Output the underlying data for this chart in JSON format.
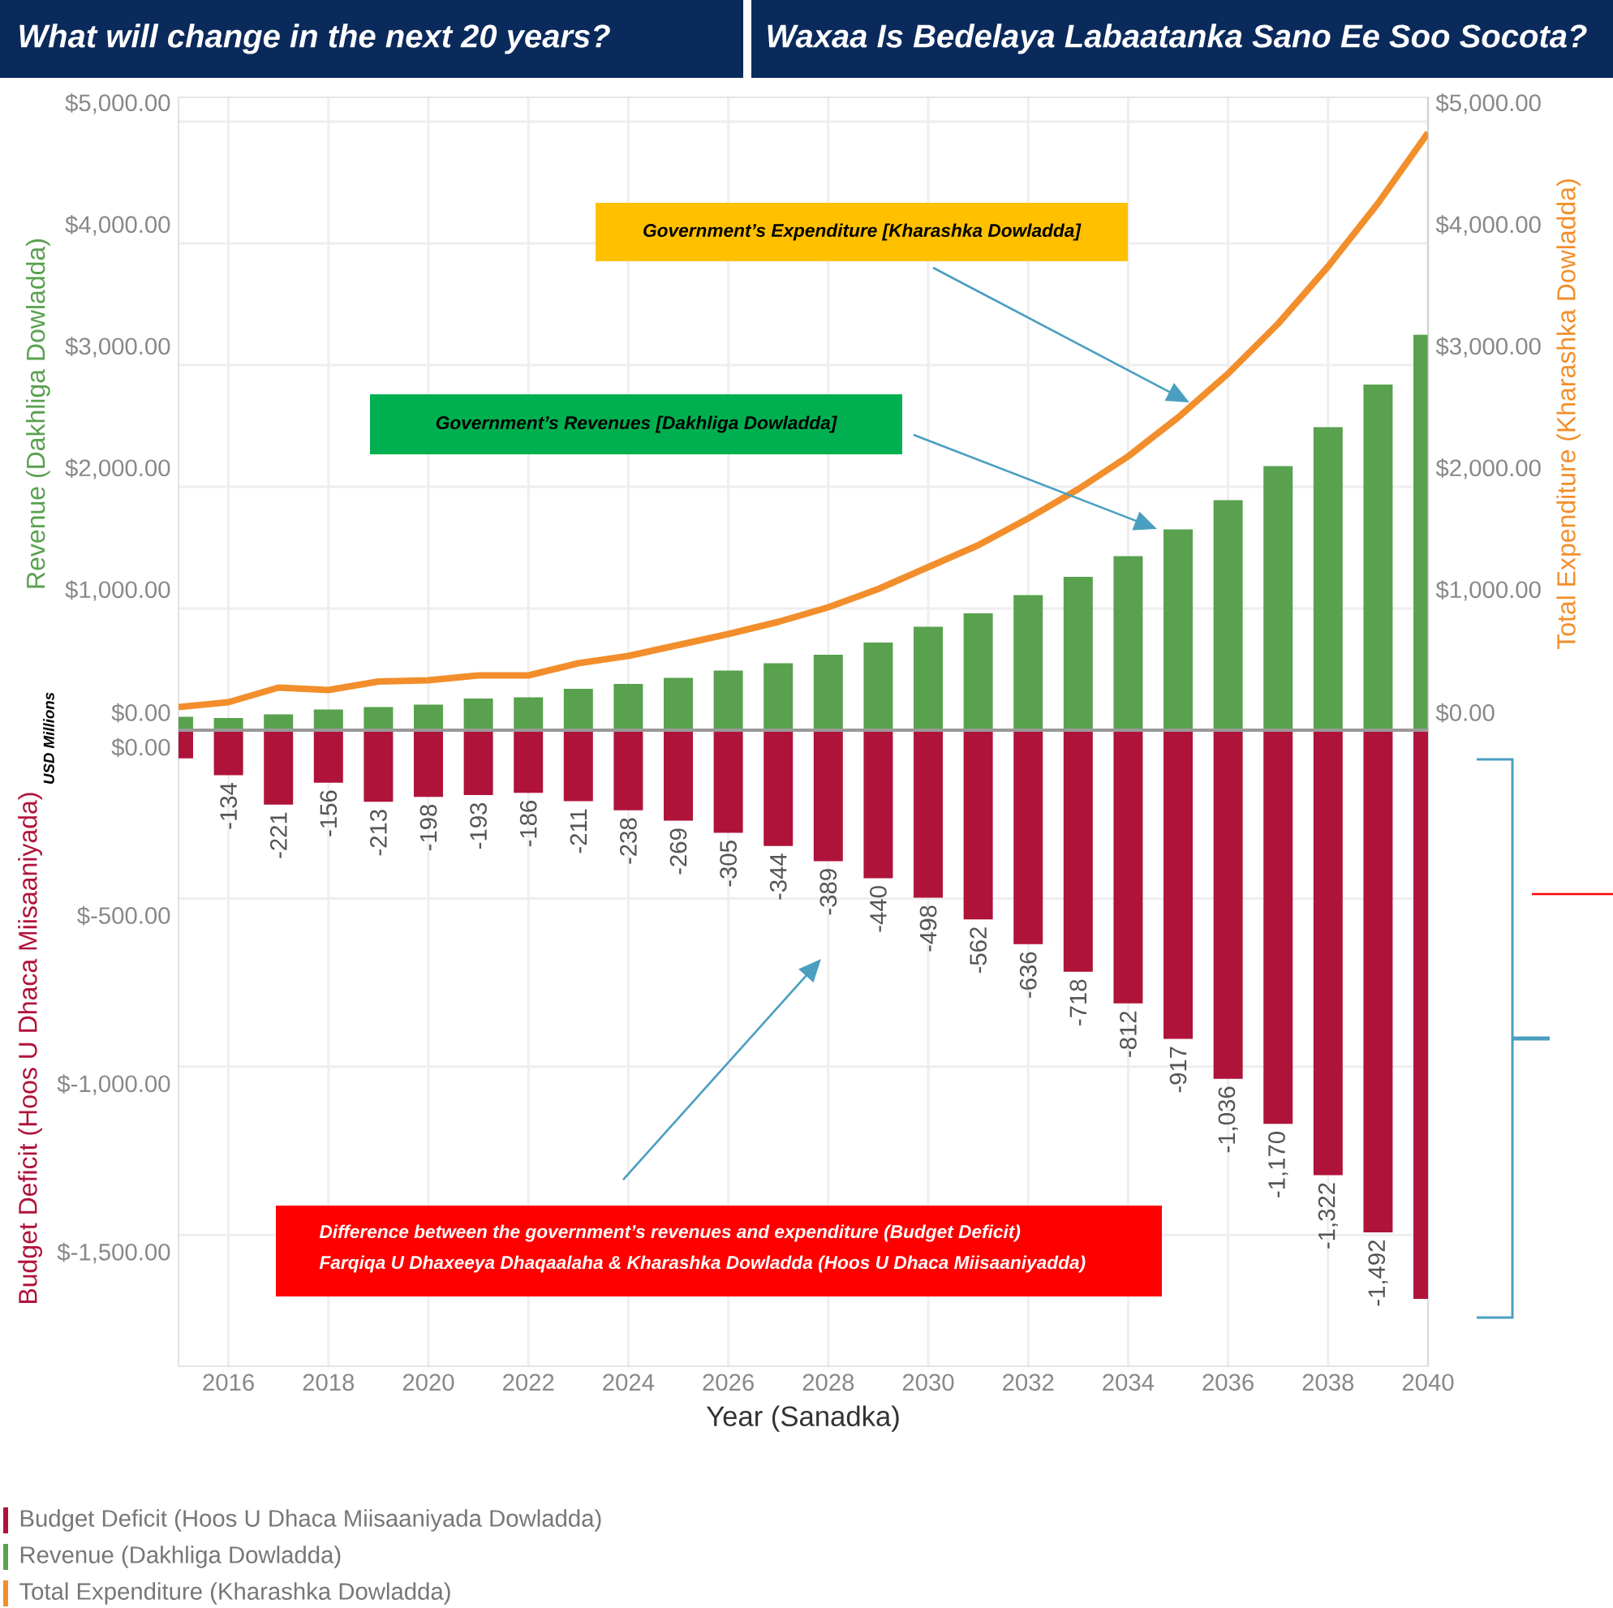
{
  "chart_data": [
    {
      "type": "bar",
      "title": "What will change in the next 20 years?",
      "subtitle": "Waxaa Is Bedelaya Labaatanka Sano Ee Soo Socota?",
      "ylabel": "Revenue (Dakhliga Dowladda)",
      "y2label": "Total Expenditure (Kharashka Dowladda)",
      "annotations": [
        "Government’s Expenditure [Kharashka Dowladda]",
        "Government’s Revenues [Dakhliga Dowladda]",
        "USD Millions"
      ],
      "x": [
        2015,
        2016,
        2017,
        2018,
        2019,
        2020,
        2021,
        2022,
        2023,
        2024,
        2025,
        2026,
        2027,
        2028,
        2029,
        2030,
        2031,
        2032,
        2033,
        2034,
        2035,
        2036,
        2037,
        2038,
        2039,
        2040
      ],
      "series": [
        {
          "name": "Revenue (Dakhliga Dowladda)",
          "type": "bar",
          "color": "#59a14f",
          "values": [
            110,
            100,
            130,
            170,
            190,
            210,
            260,
            270,
            340,
            380,
            430,
            490,
            550,
            620,
            720,
            850,
            960,
            1110,
            1260,
            1430,
            1650,
            1890,
            2170,
            2490,
            2840,
            3250
          ]
        },
        {
          "name": "Total Expenditure (Kharashka Dowladda)",
          "type": "line",
          "axis": "y2",
          "color": "#f28e2b",
          "values": [
            190,
            230,
            350,
            330,
            400,
            410,
            450,
            450,
            550,
            610,
            700,
            790,
            890,
            1010,
            1160,
            1340,
            1520,
            1740,
            1980,
            2250,
            2570,
            2930,
            3340,
            3810,
            4330,
            4910
          ]
        }
      ],
      "xlim": [
        2015,
        2040
      ],
      "xticks": [
        2016,
        2018,
        2020,
        2022,
        2024,
        2026,
        2028,
        2030,
        2032,
        2034,
        2036,
        2038,
        2040
      ],
      "ylim": [
        0,
        5200
      ],
      "yticks": [
        {
          "value": 0,
          "label": "$0.00"
        },
        {
          "value": 1000,
          "label": "$1,000.00"
        },
        {
          "value": 2000,
          "label": "$2,000.00"
        },
        {
          "value": 3000,
          "label": "$3,000.00"
        },
        {
          "value": 4000,
          "label": "$4,000.00"
        },
        {
          "value": 5000,
          "label": "$5,000.00"
        }
      ],
      "y2lim": [
        0,
        5200
      ],
      "y2ticks": [
        {
          "value": 0,
          "label": "$0.00"
        },
        {
          "value": 1000,
          "label": "$1,000.00"
        },
        {
          "value": 2000,
          "label": "$2,000.00"
        },
        {
          "value": 3000,
          "label": "$3,000.00"
        },
        {
          "value": 4000,
          "label": "$4,000.00"
        },
        {
          "value": 5000,
          "label": "$5,000.00"
        }
      ],
      "tick_labels": "y",
      "grid": true,
      "legend": "bottom"
    },
    {
      "type": "bar",
      "xlabel": "Year (Sanadka)",
      "ylabel": "Budget Deficit (Hoos U Dhaca Miisaaniyada)",
      "annotations": [
        "Difference between the government’s revenues and expenditure (Budget Deficit)",
        "Farqiqa U Dhaxeeya Dhaqaalaha & Kharashka Dowladda (Hoos U Dhaca Miisaaniyadda)"
      ],
      "x": [
        2015,
        2016,
        2017,
        2018,
        2019,
        2020,
        2021,
        2022,
        2023,
        2024,
        2025,
        2026,
        2027,
        2028,
        2029,
        2030,
        2031,
        2032,
        2033,
        2034,
        2035,
        2036,
        2037,
        2038,
        2039,
        2040
      ],
      "series": [
        {
          "name": "Budget Deficit (Hoos U Dhaca Miisaaniyada Dowladda)",
          "color": "#b0133a",
          "values": [
            -84,
            -134,
            -221,
            -156,
            -213,
            -198,
            -193,
            -186,
            -211,
            -238,
            -269,
            -305,
            -344,
            -389,
            -440,
            -498,
            -562,
            -636,
            -718,
            -812,
            -917,
            -1036,
            -1170,
            -1322,
            -1492,
            -1690
          ],
          "value_labels": [
            null,
            "-134",
            "-221",
            "-156",
            "-213",
            "-198",
            "-193",
            "-186",
            "-211",
            "-238",
            "-269",
            "-305",
            "-344",
            "-389",
            "-440",
            "-498",
            "-562",
            "-636",
            "-718",
            "-812",
            "-917",
            "-1,036",
            "-1,170",
            "-1,322",
            "-1,492",
            null
          ]
        }
      ],
      "xlim": [
        2015,
        2040
      ],
      "xticks": [
        2016,
        2018,
        2020,
        2022,
        2024,
        2026,
        2028,
        2030,
        2032,
        2034,
        2036,
        2038,
        2040
      ],
      "ylim": [
        -1890,
        0
      ],
      "yticks": [
        {
          "value": 0,
          "label": "$0.00"
        },
        {
          "value": -500,
          "label": "$-500.00"
        },
        {
          "value": -1000,
          "label": "$-1,000.00"
        },
        {
          "value": -1500,
          "label": "$-1,500.00"
        }
      ],
      "grid": true,
      "legend": "bottom"
    }
  ]
}
